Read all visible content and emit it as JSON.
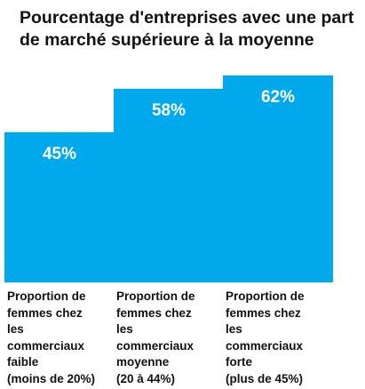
{
  "chart_data": {
    "type": "bar",
    "title": "Pourcentage d'entreprises avec une part de marché supérieure à la moyenne",
    "xlabel": "",
    "ylabel": "",
    "categories": [
      "Proportion de femmes chez les commerciaux faible (moins de 20%)",
      "Proportion de femmes chez les commerciaux moyenne (20 à 44%)",
      "Proportion de femmes chez les commerciaux forte (plus de 45%)"
    ],
    "category_lines": [
      [
        "Proportion de",
        "femmes chez",
        "les",
        "commerciaux",
        "faible",
        "(moins de 20%)"
      ],
      [
        "Proportion de",
        "femmes chez",
        "les",
        "commerciaux",
        "moyenne",
        "(20 à 44%)"
      ],
      [
        "Proportion de",
        "femmes chez",
        "les",
        "commerciaux",
        "forte",
        "(plus de 45%)"
      ]
    ],
    "values": [
      45,
      58,
      62
    ],
    "data_labels": [
      "45%",
      "58%",
      "62%"
    ],
    "ylim": [
      0,
      80
    ],
    "grid": false,
    "legend": "none",
    "bar_color": "#00a9ec",
    "label_color": "#ffffff"
  }
}
